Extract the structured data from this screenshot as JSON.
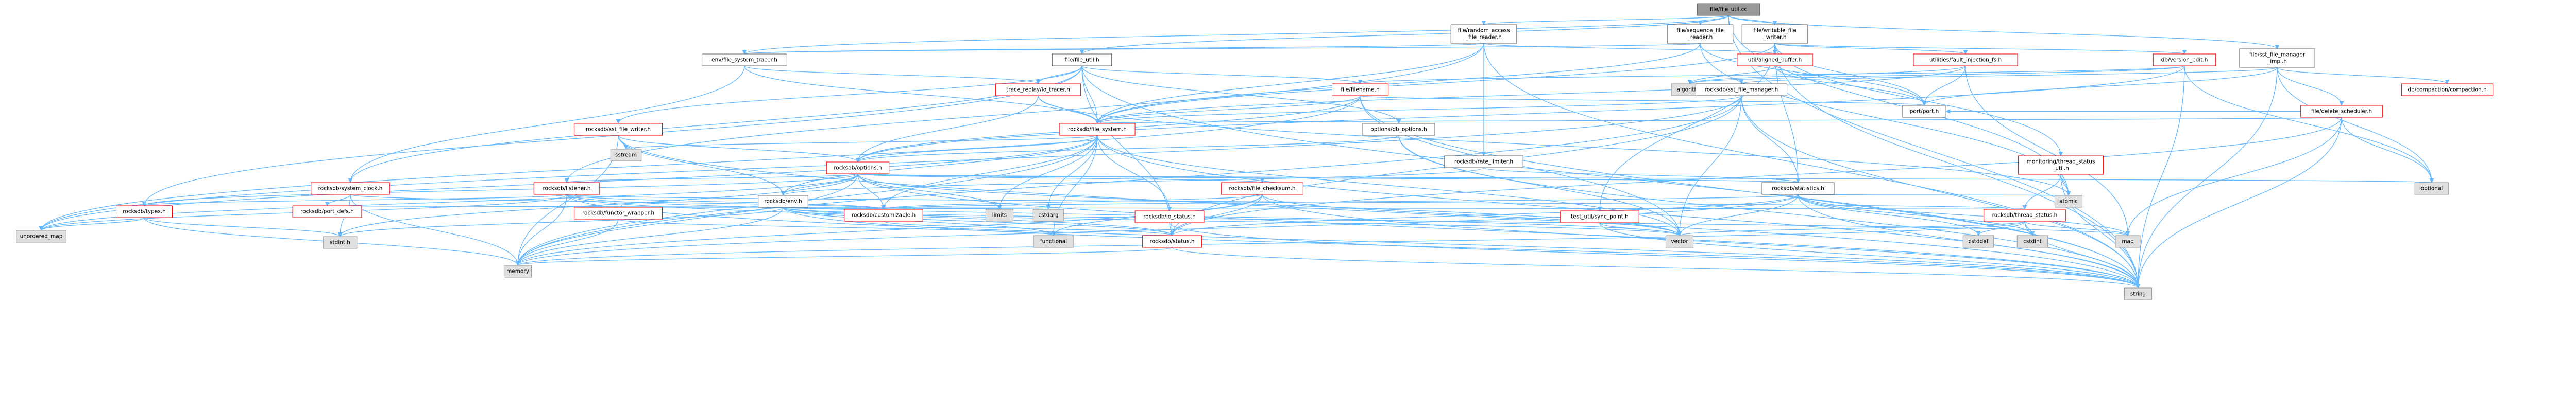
{
  "nodes": [
    {
      "id": "root",
      "kind": "root",
      "lines": [
        "file/file_util.cc"
      ]
    },
    {
      "id": "random_access_file_reader",
      "kind": "plain",
      "lines": [
        "file/random_access",
        "_file_reader.h"
      ]
    },
    {
      "id": "sequence_file_reader",
      "kind": "plain",
      "lines": [
        "file/sequence_file",
        "_reader.h"
      ]
    },
    {
      "id": "writable_file_writer",
      "kind": "plain",
      "lines": [
        "file/writable_file",
        "_writer.h"
      ]
    },
    {
      "id": "sst_file_manager_impl",
      "kind": "plain",
      "lines": [
        "file/sst_file_manager",
        "_impl.h"
      ]
    },
    {
      "id": "file_system_tracer",
      "kind": "plain",
      "lines": [
        "env/file_system_tracer.h"
      ]
    },
    {
      "id": "file_util_h",
      "kind": "plain",
      "lines": [
        "file/file_util.h"
      ]
    },
    {
      "id": "aligned_buffer",
      "kind": "local",
      "lines": [
        "util/aligned_buffer.h"
      ]
    },
    {
      "id": "fault_injection_fs",
      "kind": "local",
      "lines": [
        "utilities/fault_injection_fs.h"
      ]
    },
    {
      "id": "version_edit",
      "kind": "local",
      "lines": [
        "db/version_edit.h"
      ]
    },
    {
      "id": "trace_replayer",
      "kind": "local",
      "lines": [
        "trace_replay/io_tracer.h"
      ]
    },
    {
      "id": "filename",
      "kind": "local",
      "lines": [
        "file/filename.h"
      ]
    },
    {
      "id": "compaction",
      "kind": "local",
      "lines": [
        "db/compaction/compaction.h"
      ]
    },
    {
      "id": "algorithm",
      "kind": "std",
      "lines": [
        "algorithm"
      ]
    },
    {
      "id": "sst_file_manager",
      "kind": "plain",
      "lines": [
        "rocksdb/sst_file_manager.h"
      ]
    },
    {
      "id": "port_h",
      "kind": "plain",
      "lines": [
        "port/port.h"
      ]
    },
    {
      "id": "delete_scheduler",
      "kind": "local",
      "lines": [
        "file/delete_scheduler.h"
      ]
    },
    {
      "id": "sst_file_writer",
      "kind": "local",
      "lines": [
        "rocksdb/sst_file_writer.h"
      ]
    },
    {
      "id": "file_system",
      "kind": "local",
      "lines": [
        "rocksdb/file_system.h"
      ]
    },
    {
      "id": "options_util",
      "kind": "plain",
      "lines": [
        "options/db_options.h"
      ]
    },
    {
      "id": "sstream",
      "kind": "std",
      "lines": [
        "sstream"
      ]
    },
    {
      "id": "rate_limiter",
      "kind": "plain",
      "lines": [
        "rocksdb/rate_limiter.h"
      ]
    },
    {
      "id": "thread_status_util",
      "kind": "local",
      "lines": [
        "monitoring/thread_status",
        "_util.h"
      ]
    },
    {
      "id": "optional",
      "kind": "std",
      "lines": [
        "optional"
      ]
    },
    {
      "id": "system_clock",
      "kind": "local",
      "lines": [
        "rocksdb/system_clock.h"
      ]
    },
    {
      "id": "options",
      "kind": "local",
      "lines": [
        "rocksdb/options.h"
      ]
    },
    {
      "id": "listener",
      "kind": "local",
      "lines": [
        "rocksdb/listener.h"
      ]
    },
    {
      "id": "env",
      "kind": "plain",
      "lines": [
        "rocksdb/env.h"
      ]
    },
    {
      "id": "file_checksum",
      "kind": "local",
      "lines": [
        "rocksdb/file_checksum.h"
      ]
    },
    {
      "id": "statistics",
      "kind": "plain",
      "lines": [
        "rocksdb/statistics.h"
      ]
    },
    {
      "id": "atomic",
      "kind": "std",
      "lines": [
        "atomic"
      ]
    },
    {
      "id": "port_defs",
      "kind": "local",
      "lines": [
        "rocksdb/port_defs.h"
      ]
    },
    {
      "id": "types",
      "kind": "local",
      "lines": [
        "rocksdb/types.h"
      ]
    },
    {
      "id": "functor_wrapper",
      "kind": "local",
      "lines": [
        "rocksdb/functor_wrapper.h"
      ]
    },
    {
      "id": "customizable",
      "kind": "local",
      "lines": [
        "rocksdb/customizable.h"
      ]
    },
    {
      "id": "limits",
      "kind": "std",
      "lines": [
        "limits"
      ]
    },
    {
      "id": "cstdarg",
      "kind": "std",
      "lines": [
        "cstdarg"
      ]
    },
    {
      "id": "io_status",
      "kind": "local",
      "lines": [
        "rocksdb/io_status.h"
      ]
    },
    {
      "id": "sync_point",
      "kind": "local",
      "lines": [
        "test_util/sync_point.h"
      ]
    },
    {
      "id": "thread_status",
      "kind": "local",
      "lines": [
        "rocksdb/thread_status.h"
      ]
    },
    {
      "id": "unordered_map",
      "kind": "std",
      "lines": [
        "unordered_map"
      ]
    },
    {
      "id": "stdint",
      "kind": "std",
      "lines": [
        "stdint.h"
      ]
    },
    {
      "id": "functional",
      "kind": "std",
      "lines": [
        "functional"
      ]
    },
    {
      "id": "status",
      "kind": "local",
      "lines": [
        "rocksdb/status.h"
      ]
    },
    {
      "id": "vector",
      "kind": "std",
      "lines": [
        "vector"
      ]
    },
    {
      "id": "cstddef",
      "kind": "std",
      "lines": [
        "cstddef"
      ]
    },
    {
      "id": "cstdint",
      "kind": "std",
      "lines": [
        "cstdint"
      ]
    },
    {
      "id": "map",
      "kind": "std",
      "lines": [
        "map"
      ]
    },
    {
      "id": "memory",
      "kind": "std",
      "lines": [
        "memory"
      ]
    },
    {
      "id": "string",
      "kind": "std",
      "lines": [
        "string"
      ]
    }
  ],
  "edges": [
    [
      "root",
      "random_access_file_reader"
    ],
    [
      "root",
      "sequence_file_reader"
    ],
    [
      "root",
      "writable_file_writer"
    ],
    [
      "root",
      "sst_file_manager_impl"
    ],
    [
      "root",
      "file_util_h"
    ],
    [
      "root",
      "file_system_tracer"
    ],
    [
      "root",
      "atomic"
    ],
    [
      "root",
      "string"
    ],
    [
      "random_access_file_reader",
      "file_system_tracer"
    ],
    [
      "random_access_file_reader",
      "aligned_buffer"
    ],
    [
      "random_access_file_reader",
      "rate_limiter"
    ],
    [
      "random_access_file_reader",
      "file_system"
    ],
    [
      "random_access_file_reader",
      "listener"
    ],
    [
      "random_access_file_reader",
      "string"
    ],
    [
      "sequence_file_reader",
      "file_system_tracer"
    ],
    [
      "sequence_file_reader",
      "file_system"
    ],
    [
      "sequence_file_reader",
      "port_h"
    ],
    [
      "sequence_file_reader",
      "atomic"
    ],
    [
      "writable_file_writer",
      "aligned_buffer"
    ],
    [
      "writable_file_writer",
      "fault_injection_fs"
    ],
    [
      "writable_file_writer",
      "version_edit"
    ],
    [
      "writable_file_writer",
      "file_system"
    ],
    [
      "writable_file_writer",
      "statistics"
    ],
    [
      "writable_file_writer",
      "port_h"
    ],
    [
      "writable_file_writer",
      "sync_point"
    ],
    [
      "writable_file_writer",
      "thread_status_util"
    ],
    [
      "writable_file_writer",
      "string"
    ],
    [
      "sst_file_manager_impl",
      "sst_file_manager"
    ],
    [
      "sst_file_manager_impl",
      "delete_scheduler"
    ],
    [
      "sst_file_manager_impl",
      "compaction"
    ],
    [
      "sst_file_manager_impl",
      "port_h"
    ],
    [
      "sst_file_manager_impl",
      "optional"
    ],
    [
      "sst_file_manager_impl",
      "string"
    ],
    [
      "file_system_tracer",
      "file_system"
    ],
    [
      "file_system_tracer",
      "trace_replayer"
    ],
    [
      "file_system_tracer",
      "system_clock"
    ],
    [
      "file_util_h",
      "filename"
    ],
    [
      "file_util_h",
      "options_util"
    ],
    [
      "file_util_h",
      "file_system"
    ],
    [
      "file_util_h",
      "sst_file_writer"
    ],
    [
      "file_util_h",
      "status"
    ],
    [
      "file_util_h",
      "system_clock"
    ],
    [
      "file_util_h",
      "types"
    ],
    [
      "file_util_h",
      "trace_replayer"
    ],
    [
      "file_util_h",
      "string"
    ],
    [
      "aligned_buffer",
      "algorithm"
    ],
    [
      "aligned_buffer",
      "port_h"
    ],
    [
      "fault_injection_fs",
      "file_system"
    ],
    [
      "fault_injection_fs",
      "algorithm"
    ],
    [
      "fault_injection_fs",
      "map"
    ],
    [
      "fault_injection_fs",
      "port_h"
    ],
    [
      "version_edit",
      "filename"
    ],
    [
      "version_edit",
      "options"
    ],
    [
      "version_edit",
      "algorithm"
    ],
    [
      "version_edit",
      "optional"
    ],
    [
      "version_edit",
      "string"
    ],
    [
      "trace_replayer",
      "file_system"
    ],
    [
      "trace_replayer",
      "options"
    ],
    [
      "trace_replayer",
      "atomic"
    ],
    [
      "filename",
      "file_system"
    ],
    [
      "filename",
      "options"
    ],
    [
      "filename",
      "port_h"
    ],
    [
      "filename",
      "unordered_map"
    ],
    [
      "filename",
      "vector"
    ],
    [
      "filename",
      "string"
    ],
    [
      "sst_file_manager",
      "file_system"
    ],
    [
      "sst_file_manager",
      "statistics"
    ],
    [
      "sst_file_manager",
      "status"
    ],
    [
      "sst_file_manager",
      "memory"
    ],
    [
      "sst_file_manager",
      "vector"
    ],
    [
      "sst_file_manager",
      "string"
    ],
    [
      "sst_file_manager",
      "unordered_map"
    ],
    [
      "delete_scheduler",
      "port_h"
    ],
    [
      "delete_scheduler",
      "file_system"
    ],
    [
      "delete_scheduler",
      "status"
    ],
    [
      "delete_scheduler",
      "map"
    ],
    [
      "delete_scheduler",
      "optional"
    ],
    [
      "delete_scheduler",
      "string"
    ],
    [
      "sst_file_writer",
      "sstream"
    ],
    [
      "sst_file_writer",
      "options"
    ],
    [
      "sst_file_writer",
      "env"
    ],
    [
      "sst_file_writer",
      "memory"
    ],
    [
      "sst_file_writer",
      "string"
    ],
    [
      "file_system",
      "env"
    ],
    [
      "file_system",
      "options"
    ],
    [
      "file_system",
      "io_status"
    ],
    [
      "file_system",
      "customizable"
    ],
    [
      "file_system",
      "functional"
    ],
    [
      "file_system",
      "sstream"
    ],
    [
      "file_system",
      "limits"
    ],
    [
      "file_system",
      "cstdarg"
    ],
    [
      "file_system",
      "memory"
    ],
    [
      "file_system",
      "vector"
    ],
    [
      "file_system",
      "string"
    ],
    [
      "file_system",
      "unordered_map"
    ],
    [
      "options_util",
      "options"
    ],
    [
      "options_util",
      "vector"
    ],
    [
      "options_util",
      "string"
    ],
    [
      "rate_limiter",
      "env"
    ],
    [
      "rate_limiter",
      "statistics"
    ],
    [
      "thread_status_util",
      "thread_status"
    ],
    [
      "thread_status_util",
      "atomic"
    ],
    [
      "thread_status_util",
      "string"
    ],
    [
      "system_clock",
      "customizable"
    ],
    [
      "system_clock",
      "port_defs"
    ],
    [
      "system_clock",
      "stdint"
    ],
    [
      "system_clock",
      "memory"
    ],
    [
      "options",
      "env"
    ],
    [
      "options",
      "listener"
    ],
    [
      "options",
      "file_checksum"
    ],
    [
      "options",
      "statistics"
    ],
    [
      "options",
      "customizable"
    ],
    [
      "options",
      "types"
    ],
    [
      "options",
      "limits"
    ],
    [
      "options",
      "optional"
    ],
    [
      "options",
      "unordered_map"
    ],
    [
      "options",
      "memory"
    ],
    [
      "options",
      "vector"
    ],
    [
      "options",
      "string"
    ],
    [
      "options",
      "stdint"
    ],
    [
      "listener",
      "customizable"
    ],
    [
      "listener",
      "status"
    ],
    [
      "listener",
      "types"
    ],
    [
      "listener",
      "thread_status"
    ],
    [
      "listener",
      "memory"
    ],
    [
      "listener",
      "string"
    ],
    [
      "listener",
      "unordered_map"
    ],
    [
      "listener",
      "vector"
    ],
    [
      "env",
      "customizable"
    ],
    [
      "env",
      "functor_wrapper"
    ],
    [
      "env",
      "port_defs"
    ],
    [
      "env",
      "status"
    ],
    [
      "env",
      "thread_status"
    ],
    [
      "env",
      "stdint"
    ],
    [
      "env",
      "cstdarg"
    ],
    [
      "env",
      "functional"
    ],
    [
      "env",
      "limits"
    ],
    [
      "env",
      "map"
    ],
    [
      "env",
      "memory"
    ],
    [
      "env",
      "string"
    ],
    [
      "env",
      "vector"
    ],
    [
      "file_checksum",
      "customizable"
    ],
    [
      "file_checksum",
      "status"
    ],
    [
      "file_checksum",
      "functional"
    ],
    [
      "file_checksum",
      "memory"
    ],
    [
      "file_checksum",
      "vector"
    ],
    [
      "file_checksum",
      "string"
    ],
    [
      "statistics",
      "customizable"
    ],
    [
      "statistics",
      "status"
    ],
    [
      "statistics",
      "atomic"
    ],
    [
      "statistics",
      "cstddef"
    ],
    [
      "statistics",
      "cstdint"
    ],
    [
      "statistics",
      "map"
    ],
    [
      "statistics",
      "memory"
    ],
    [
      "statistics",
      "string"
    ],
    [
      "statistics",
      "vector"
    ],
    [
      "types",
      "unordered_map"
    ],
    [
      "types",
      "memory"
    ],
    [
      "types",
      "stdint"
    ],
    [
      "functor_wrapper",
      "functional"
    ],
    [
      "functor_wrapper",
      "memory"
    ],
    [
      "functor_wrapper",
      "utility"
    ],
    [
      "customizable",
      "status"
    ],
    [
      "io_status",
      "status"
    ],
    [
      "io_status",
      "string"
    ],
    [
      "sync_point",
      "vector"
    ],
    [
      "sync_point",
      "string"
    ],
    [
      "thread_status",
      "cstddef"
    ],
    [
      "thread_status",
      "cstdint"
    ],
    [
      "thread_status",
      "map"
    ],
    [
      "thread_status",
      "memory"
    ],
    [
      "thread_status",
      "string"
    ],
    [
      "thread_status",
      "vector"
    ],
    [
      "status",
      "memory"
    ],
    [
      "status",
      "string"
    ]
  ]
}
